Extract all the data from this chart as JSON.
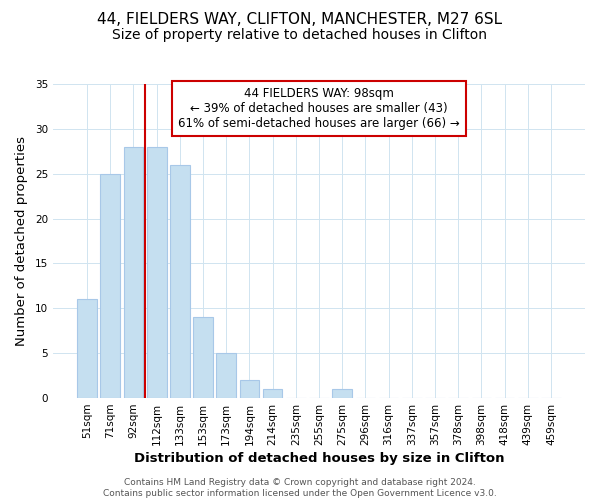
{
  "title": "44, FIELDERS WAY, CLIFTON, MANCHESTER, M27 6SL",
  "subtitle": "Size of property relative to detached houses in Clifton",
  "xlabel": "Distribution of detached houses by size in Clifton",
  "ylabel": "Number of detached properties",
  "bar_labels": [
    "51sqm",
    "71sqm",
    "92sqm",
    "112sqm",
    "133sqm",
    "153sqm",
    "173sqm",
    "194sqm",
    "214sqm",
    "235sqm",
    "255sqm",
    "275sqm",
    "296sqm",
    "316sqm",
    "337sqm",
    "357sqm",
    "378sqm",
    "398sqm",
    "418sqm",
    "439sqm",
    "459sqm"
  ],
  "bar_values": [
    11,
    25,
    28,
    28,
    26,
    9,
    5,
    2,
    1,
    0,
    0,
    1,
    0,
    0,
    0,
    0,
    0,
    0,
    0,
    0,
    0
  ],
  "bar_color": "#c5dff0",
  "bar_edge_color": "#a8c8e8",
  "vline_x_idx": 2,
  "vline_color": "#cc0000",
  "ylim": [
    0,
    35
  ],
  "yticks": [
    0,
    5,
    10,
    15,
    20,
    25,
    30,
    35
  ],
  "annotation_title": "44 FIELDERS WAY: 98sqm",
  "annotation_line1": "← 39% of detached houses are smaller (43)",
  "annotation_line2": "61% of semi-detached houses are larger (66) →",
  "annotation_box_color": "#ffffff",
  "annotation_box_edge": "#cc0000",
  "footer_line1": "Contains HM Land Registry data © Crown copyright and database right 2024.",
  "footer_line2": "Contains public sector information licensed under the Open Government Licence v3.0.",
  "title_fontsize": 11,
  "subtitle_fontsize": 10,
  "axis_label_fontsize": 9.5,
  "tick_fontsize": 7.5,
  "annotation_fontsize": 8.5,
  "footer_fontsize": 6.5,
  "grid_color": "#d0e4f0"
}
